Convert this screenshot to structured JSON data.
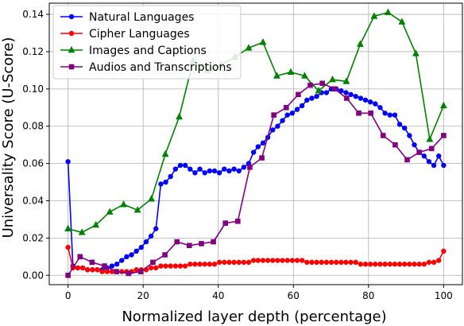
{
  "chart_data": {
    "type": "line",
    "xlabel": "Normalized layer depth (percentage)",
    "ylabel": "Universality Score (U-Score)",
    "xlim": [
      -5,
      105
    ],
    "ylim": [
      -0.005,
      0.146
    ],
    "xticks": [
      0,
      20,
      40,
      60,
      80,
      100
    ],
    "yticks": [
      0.0,
      0.02,
      0.04,
      0.06,
      0.08,
      0.1,
      0.12,
      0.14
    ],
    "ytick_labels": [
      "0.00",
      "0.02",
      "0.04",
      "0.06",
      "0.08",
      "0.10",
      "0.12",
      "0.14"
    ],
    "grid": true,
    "legend_position": "top-left",
    "series": [
      {
        "name": "Natural Languages",
        "color": "#0000ff",
        "marker": "circle",
        "x": [
          0,
          1.3,
          2.6,
          3.9,
          5.2,
          6.5,
          7.8,
          9.1,
          10.4,
          11.7,
          13.0,
          14.3,
          15.6,
          16.9,
          18.2,
          19.5,
          20.8,
          22.1,
          23.4,
          24.7,
          26.0,
          27.3,
          28.6,
          29.9,
          31.2,
          32.5,
          33.8,
          35.1,
          36.4,
          37.7,
          39.0,
          40.3,
          41.6,
          42.9,
          44.2,
          45.5,
          46.8,
          48.1,
          49.4,
          50.6,
          51.9,
          53.2,
          54.5,
          55.8,
          57.1,
          58.4,
          59.7,
          61.0,
          62.3,
          63.6,
          64.9,
          66.2,
          67.5,
          68.8,
          70.1,
          71.4,
          72.7,
          74.0,
          75.3,
          76.6,
          77.9,
          79.2,
          80.5,
          81.8,
          83.1,
          84.4,
          85.7,
          87.0,
          88.3,
          89.6,
          90.9,
          92.2,
          93.5,
          94.8,
          96.1,
          97.4,
          98.7,
          100
        ],
        "y": [
          0.061,
          0.005,
          0.004,
          0.004,
          0.003,
          0.003,
          0.003,
          0.003,
          0.004,
          0.005,
          0.006,
          0.008,
          0.01,
          0.011,
          0.013,
          0.015,
          0.018,
          0.021,
          0.025,
          0.049,
          0.05,
          0.053,
          0.057,
          0.059,
          0.059,
          0.057,
          0.055,
          0.057,
          0.055,
          0.056,
          0.056,
          0.055,
          0.057,
          0.056,
          0.057,
          0.056,
          0.058,
          0.06,
          0.066,
          0.069,
          0.071,
          0.074,
          0.078,
          0.08,
          0.083,
          0.086,
          0.087,
          0.089,
          0.091,
          0.094,
          0.095,
          0.096,
          0.098,
          0.098,
          0.1,
          0.1,
          0.099,
          0.098,
          0.097,
          0.096,
          0.095,
          0.094,
          0.093,
          0.092,
          0.09,
          0.087,
          0.086,
          0.086,
          0.081,
          0.079,
          0.075,
          0.07,
          0.066,
          0.064,
          0.061,
          0.059,
          0.064,
          0.059
        ]
      },
      {
        "name": "Cipher Languages",
        "color": "#ff0000",
        "marker": "circle",
        "x": [
          0,
          1.3,
          2.6,
          3.9,
          5.2,
          6.5,
          7.8,
          9.1,
          10.4,
          11.7,
          13.0,
          14.3,
          15.6,
          16.9,
          18.2,
          19.5,
          20.8,
          22.1,
          23.4,
          24.7,
          26.0,
          27.3,
          28.6,
          29.9,
          31.2,
          32.5,
          33.8,
          35.1,
          36.4,
          37.7,
          39.0,
          40.3,
          41.6,
          42.9,
          44.2,
          45.5,
          46.8,
          48.1,
          49.4,
          50.6,
          51.9,
          53.2,
          54.5,
          55.8,
          57.1,
          58.4,
          59.7,
          61.0,
          62.3,
          63.6,
          64.9,
          66.2,
          67.5,
          68.8,
          70.1,
          71.4,
          72.7,
          74.0,
          75.3,
          76.6,
          77.9,
          79.2,
          80.5,
          81.8,
          83.1,
          84.4,
          85.7,
          87.0,
          88.3,
          89.6,
          90.9,
          92.2,
          93.5,
          94.8,
          96.1,
          97.4,
          98.7,
          100
        ],
        "y": [
          0.015,
          0.004,
          0.004,
          0.004,
          0.003,
          0.003,
          0.003,
          0.002,
          0.002,
          0.002,
          0.002,
          0.002,
          0.002,
          0.002,
          0.003,
          0.003,
          0.003,
          0.004,
          0.004,
          0.005,
          0.005,
          0.005,
          0.005,
          0.005,
          0.005,
          0.006,
          0.006,
          0.006,
          0.006,
          0.006,
          0.006,
          0.007,
          0.007,
          0.007,
          0.007,
          0.007,
          0.007,
          0.007,
          0.008,
          0.008,
          0.008,
          0.008,
          0.008,
          0.008,
          0.008,
          0.008,
          0.008,
          0.008,
          0.008,
          0.007,
          0.007,
          0.007,
          0.007,
          0.007,
          0.007,
          0.007,
          0.007,
          0.007,
          0.007,
          0.007,
          0.006,
          0.006,
          0.006,
          0.006,
          0.006,
          0.006,
          0.006,
          0.006,
          0.006,
          0.006,
          0.006,
          0.006,
          0.006,
          0.006,
          0.007,
          0.007,
          0.008,
          0.013
        ]
      },
      {
        "name": "Images and Captions",
        "color": "#008000",
        "marker": "triangle",
        "x": [
          0,
          3.7,
          7.4,
          11.1,
          14.8,
          18.5,
          22.2,
          25.9,
          29.6,
          33.3,
          37.0,
          40.7,
          44.4,
          48.1,
          51.9,
          55.6,
          59.3,
          63.0,
          66.7,
          70.4,
          74.1,
          77.8,
          81.5,
          85.2,
          88.9,
          92.6,
          96.3,
          100
        ],
        "y": [
          0.025,
          0.023,
          0.027,
          0.034,
          0.038,
          0.035,
          0.041,
          0.065,
          0.085,
          0.115,
          0.11,
          0.113,
          0.117,
          0.122,
          0.125,
          0.107,
          0.109,
          0.107,
          0.099,
          0.105,
          0.104,
          0.124,
          0.139,
          0.141,
          0.136,
          0.119,
          0.073,
          0.091
        ]
      },
      {
        "name": "Audios and Transcriptions",
        "color": "#800080",
        "marker": "square",
        "x": [
          0,
          3.2,
          6.4,
          9.7,
          12.9,
          16.1,
          19.4,
          22.6,
          25.8,
          29.0,
          32.3,
          35.5,
          38.7,
          41.9,
          45.2,
          48.4,
          51.6,
          54.8,
          58.1,
          61.3,
          64.5,
          67.7,
          71.0,
          74.2,
          77.4,
          80.6,
          83.9,
          87.1,
          90.3,
          93.5,
          96.8,
          100
        ],
        "y": [
          0.0,
          0.01,
          0.007,
          0.005,
          0.002,
          0.001,
          0.002,
          0.007,
          0.011,
          0.018,
          0.016,
          0.017,
          0.018,
          0.028,
          0.029,
          0.058,
          0.063,
          0.086,
          0.09,
          0.097,
          0.102,
          0.103,
          0.1,
          0.095,
          0.087,
          0.087,
          0.075,
          0.07,
          0.062,
          0.066,
          0.068,
          0.075
        ]
      }
    ]
  }
}
